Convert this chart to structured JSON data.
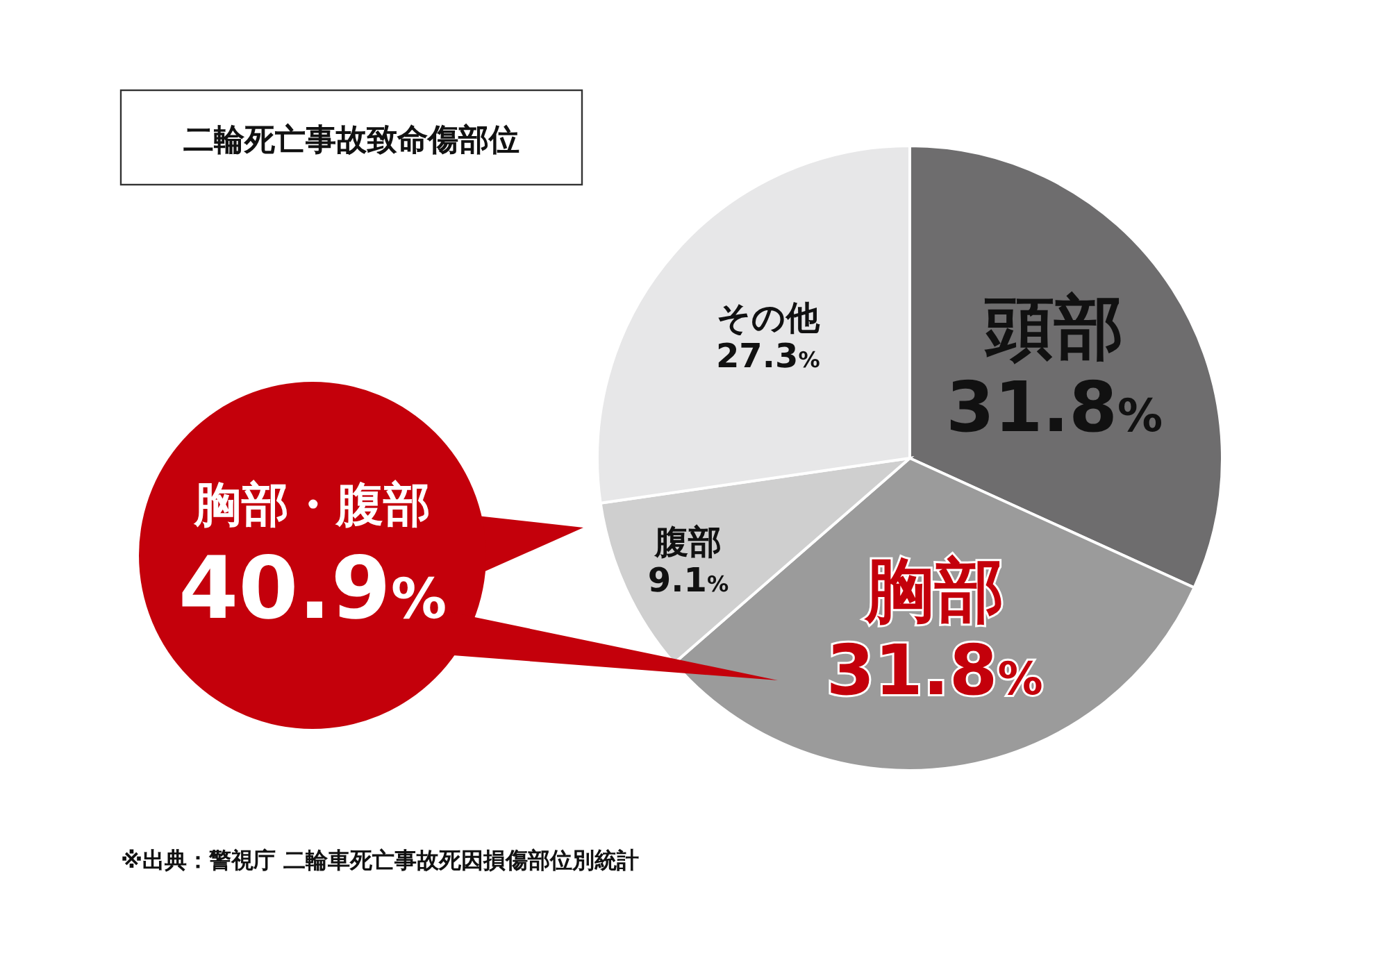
{
  "chart_data": {
    "type": "pie",
    "title": "二輪死亡事故致命傷部位",
    "categories": [
      "頭部",
      "胸部",
      "腹部",
      "その他"
    ],
    "values": [
      31.8,
      31.8,
      9.1,
      27.3
    ],
    "colors": [
      "#6e6d6e",
      "#9b9b9b",
      "#cfcfcf",
      "#e7e7e8"
    ],
    "value_labels": [
      "31.8%",
      "31.8%",
      "9.1%",
      "27.3%"
    ],
    "annotations": [
      "胸部・腹部 40.9%",
      "※出典：警視庁 二輪車死亡事故死因損傷部位別統計"
    ]
  }
}
